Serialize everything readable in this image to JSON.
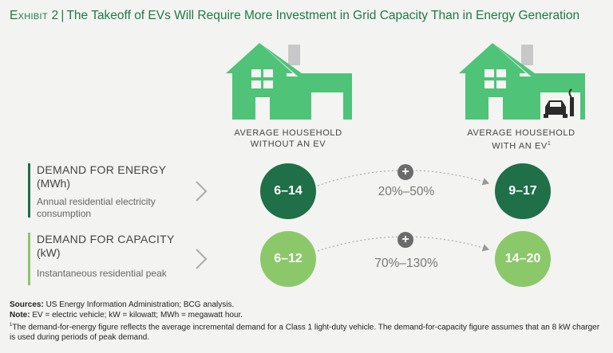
{
  "title": {
    "exhibit": "Exhibit 2",
    "separator": "|",
    "text": "The Takeoff of EVs Will Require More Investment in Grid Capacity Than in Energy Generation"
  },
  "houses": {
    "without_ev": {
      "label_line1": "AVERAGE HOUSEHOLD",
      "label_line2": "WITHOUT AN EV",
      "icon": "house-icon"
    },
    "with_ev": {
      "label_line1": "AVERAGE HOUSEHOLD",
      "label_line2": "WITH AN EV",
      "label_sup": "1",
      "icon": "house-with-car-icon"
    }
  },
  "rows": [
    {
      "title": "DEMAND FOR ENERGY",
      "unit": "(MWh)",
      "description": "Annual residential electricity consumption",
      "without_ev": "6–14",
      "with_ev": "9–17",
      "increase": "20%–50%",
      "color": "#1f6f48"
    },
    {
      "title": "DEMAND FOR CAPACITY",
      "unit": "(kW)",
      "description": "Instantaneous residential peak",
      "without_ev": "6–12",
      "with_ev": "14–20",
      "increase": "70%–130%",
      "color": "#8bc86a"
    }
  ],
  "plus_symbol": "+",
  "footnotes": {
    "sources_label": "Sources:",
    "sources_text": "US Energy Information Administration; BCG analysis.",
    "note_label": "Note:",
    "note_text": "EV = electric vehicle; kW = kilowatt; MWh = megawatt hour.",
    "footnote_mark": "1",
    "footnote_text": "The demand-for-energy figure reflects the average incremental demand for a Class 1 light-duty vehicle. The demand-for-capacity figure assumes that an 8 kW charger is used during periods of peak demand."
  },
  "colors": {
    "house_green": "#4fc378",
    "house_window": "#f4f4f2",
    "chimney": "#c8c8c8",
    "title_green": "#1e7a44"
  }
}
